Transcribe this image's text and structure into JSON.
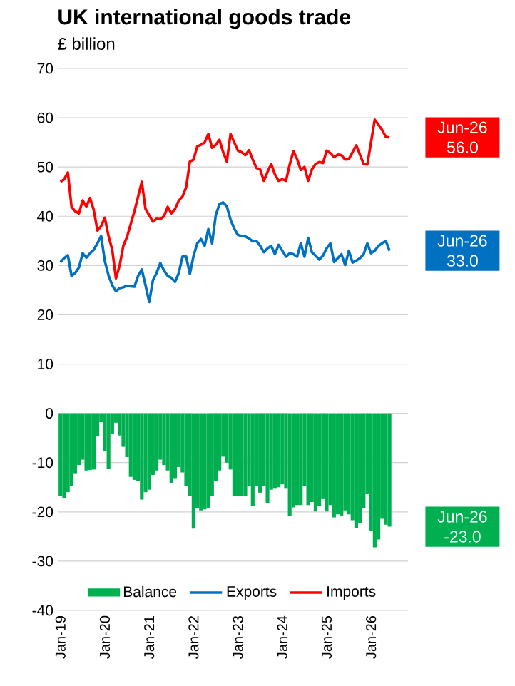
{
  "chart_data": {
    "type": "line",
    "title": "UK international goods trade",
    "subtitle": "£ billion",
    "x": [
      "2019-01",
      "2019-02",
      "2019-03",
      "2019-04",
      "2019-05",
      "2019-06",
      "2019-07",
      "2019-08",
      "2019-09",
      "2019-10",
      "2019-11",
      "2019-12",
      "2020-01",
      "2020-02",
      "2020-03",
      "2020-04",
      "2020-05",
      "2020-06",
      "2020-07",
      "2020-08",
      "2020-09",
      "2020-10",
      "2020-11",
      "2020-12",
      "2021-01",
      "2021-02",
      "2021-03",
      "2021-04",
      "2021-05",
      "2021-06",
      "2021-07",
      "2021-08",
      "2021-09",
      "2021-10",
      "2021-11",
      "2021-12",
      "2022-01",
      "2022-02",
      "2022-03",
      "2022-04",
      "2022-05",
      "2022-06",
      "2022-07",
      "2022-08",
      "2022-09",
      "2022-10",
      "2022-11",
      "2022-12",
      "2023-01",
      "2023-02",
      "2023-03",
      "2023-04",
      "2023-05",
      "2023-06",
      "2023-07",
      "2023-08",
      "2023-09",
      "2023-10",
      "2023-11",
      "2023-12",
      "2024-01",
      "2024-02",
      "2024-03",
      "2024-04",
      "2024-05",
      "2024-06",
      "2024-07",
      "2024-08",
      "2024-09",
      "2024-10",
      "2024-11",
      "2024-12",
      "2025-01",
      "2025-02",
      "2025-03",
      "2025-04",
      "2025-05",
      "2025-06",
      "2025-07",
      "2025-08",
      "2025-09",
      "2025-10",
      "2025-11",
      "2025-12",
      "2026-01",
      "2026-02",
      "2026-03",
      "2026-04",
      "2026-05",
      "2026-06"
    ],
    "series": [
      {
        "name": "Balance",
        "type": "bar",
        "color": "#00b050",
        "values": [
          -16.7,
          -17.2,
          -16.0,
          -14.7,
          -12.3,
          -10.5,
          -9.4,
          -11.6,
          -11.5,
          -11.4,
          -4.6,
          -1.8,
          -7.6,
          -11.2,
          -4.1,
          -1.9,
          -4.5,
          -6.8,
          -8.9,
          -12.9,
          -13.5,
          -13.8,
          -17.5,
          -16.0,
          -15.5,
          -12.5,
          -11.6,
          -9.4,
          -10.5,
          -11.6,
          -14.2,
          -13.3,
          -10.9,
          -12.0,
          -14.7,
          -16.8,
          -23.4,
          -19.3,
          -19.7,
          -19.5,
          -19.3,
          -16.8,
          -13.8,
          -11.6,
          -8.8,
          -10.0,
          -11.4,
          -16.7,
          -16.8,
          -16.8,
          -16.8,
          -14.7,
          -18.8,
          -14.7,
          -16.1,
          -14.7,
          -18.2,
          -15.5,
          -15.3,
          -15.0,
          -14.4,
          -15.3,
          -20.8,
          -19.1,
          -18.6,
          -18.6,
          -14.7,
          -18.6,
          -18.0,
          -19.9,
          -18.8,
          -17.4,
          -19.9,
          -18.6,
          -21.1,
          -20.5,
          -20.8,
          -19.7,
          -20.5,
          -21.7,
          -23.2,
          -22.3,
          -19.3,
          -16.4,
          -23.9,
          -27.2,
          -25.6,
          -21.4,
          -22.6,
          -23.0
        ]
      },
      {
        "name": "Exports",
        "color": "#0070c0",
        "values": [
          30.7,
          31.5,
          32.1,
          27.9,
          28.5,
          29.6,
          32.5,
          31.6,
          32.5,
          33.2,
          34.5,
          36.0,
          30.9,
          28.0,
          26.0,
          24.8,
          25.4,
          25.6,
          25.9,
          25.8,
          25.7,
          27.9,
          29.2,
          26.0,
          22.6,
          27.0,
          28.5,
          30.5,
          29.0,
          27.9,
          27.5,
          26.7,
          28.5,
          31.8,
          31.8,
          28.3,
          32.0,
          34.5,
          35.4,
          34.0,
          37.4,
          34.5,
          40.2,
          42.5,
          42.8,
          42.0,
          39.3,
          37.5,
          36.2,
          36.0,
          35.9,
          35.5,
          34.9,
          35.0,
          34.0,
          32.7,
          33.5,
          34.0,
          32.3,
          34.2,
          33.0,
          31.8,
          32.5,
          32.3,
          31.8,
          34.5,
          31.8,
          35.6,
          32.7,
          32.0,
          31.2,
          32.0,
          33.5,
          34.5,
          30.7,
          31.5,
          32.3,
          30.1,
          33.0,
          30.6,
          31.0,
          31.5,
          32.3,
          34.5,
          32.5,
          33.0,
          34.0,
          34.5,
          35.0,
          33.0
        ]
      },
      {
        "name": "Imports",
        "color": "#ff0000",
        "values": [
          47.0,
          47.5,
          48.9,
          41.9,
          41.0,
          40.6,
          43.2,
          42.0,
          43.7,
          41.3,
          37.1,
          38.0,
          39.7,
          36.0,
          33.2,
          27.4,
          30.0,
          34.0,
          35.8,
          38.4,
          41.0,
          44.0,
          47.0,
          41.5,
          40.2,
          38.9,
          39.5,
          39.4,
          40.0,
          41.9,
          40.6,
          41.5,
          43.2,
          44.0,
          45.9,
          51.1,
          51.5,
          54.2,
          54.5,
          55.0,
          56.7,
          53.9,
          54.5,
          55.5,
          53.0,
          51.1,
          56.7,
          55.0,
          53.3,
          53.0,
          52.4,
          53.4,
          51.5,
          49.8,
          49.5,
          47.2,
          49.0,
          50.6,
          48.5,
          47.2,
          47.5,
          47.2,
          50.5,
          53.2,
          51.6,
          49.4,
          50.0,
          47.2,
          49.5,
          50.6,
          51.0,
          50.8,
          53.3,
          52.8,
          52.0,
          52.5,
          52.4,
          51.5,
          51.6,
          53.0,
          54.4,
          52.5,
          50.6,
          50.5,
          55.0,
          59.6,
          58.6,
          57.5,
          56.1,
          56.0
        ]
      }
    ],
    "xlim": [
      "2018-12-15",
      "2026-11"
    ],
    "xticks": [
      {
        "value": "2019-01",
        "label": "Jan-19"
      },
      {
        "value": "2020-01",
        "label": "Jan-20"
      },
      {
        "value": "2021-01",
        "label": "Jan-21"
      },
      {
        "value": "2022-01",
        "label": "Jan-22"
      },
      {
        "value": "2023-01",
        "label": "Jan-23"
      },
      {
        "value": "2024-01",
        "label": "Jan-24"
      },
      {
        "value": "2025-01",
        "label": "Jan-25"
      },
      {
        "value": "2026-01",
        "label": "Jan-26"
      }
    ],
    "ylim": [
      -40,
      70
    ],
    "yticks": [
      -40,
      -30,
      -20,
      -10,
      0,
      10,
      20,
      30,
      40,
      50,
      60,
      70
    ],
    "annotations": [
      {
        "text": "Jun-26 56.0",
        "x": "2026-06",
        "y": 56.0
      },
      {
        "text": "Jun-26 33.0",
        "x": "2026-06",
        "y": 33.0
      },
      {
        "text": "Jun-26 -23.0",
        "x": "2026-06",
        "y": -23.0
      }
    ],
    "grid": "y",
    "legend": "bottom",
    "marker": "none",
    "line_style": "solid"
  }
}
